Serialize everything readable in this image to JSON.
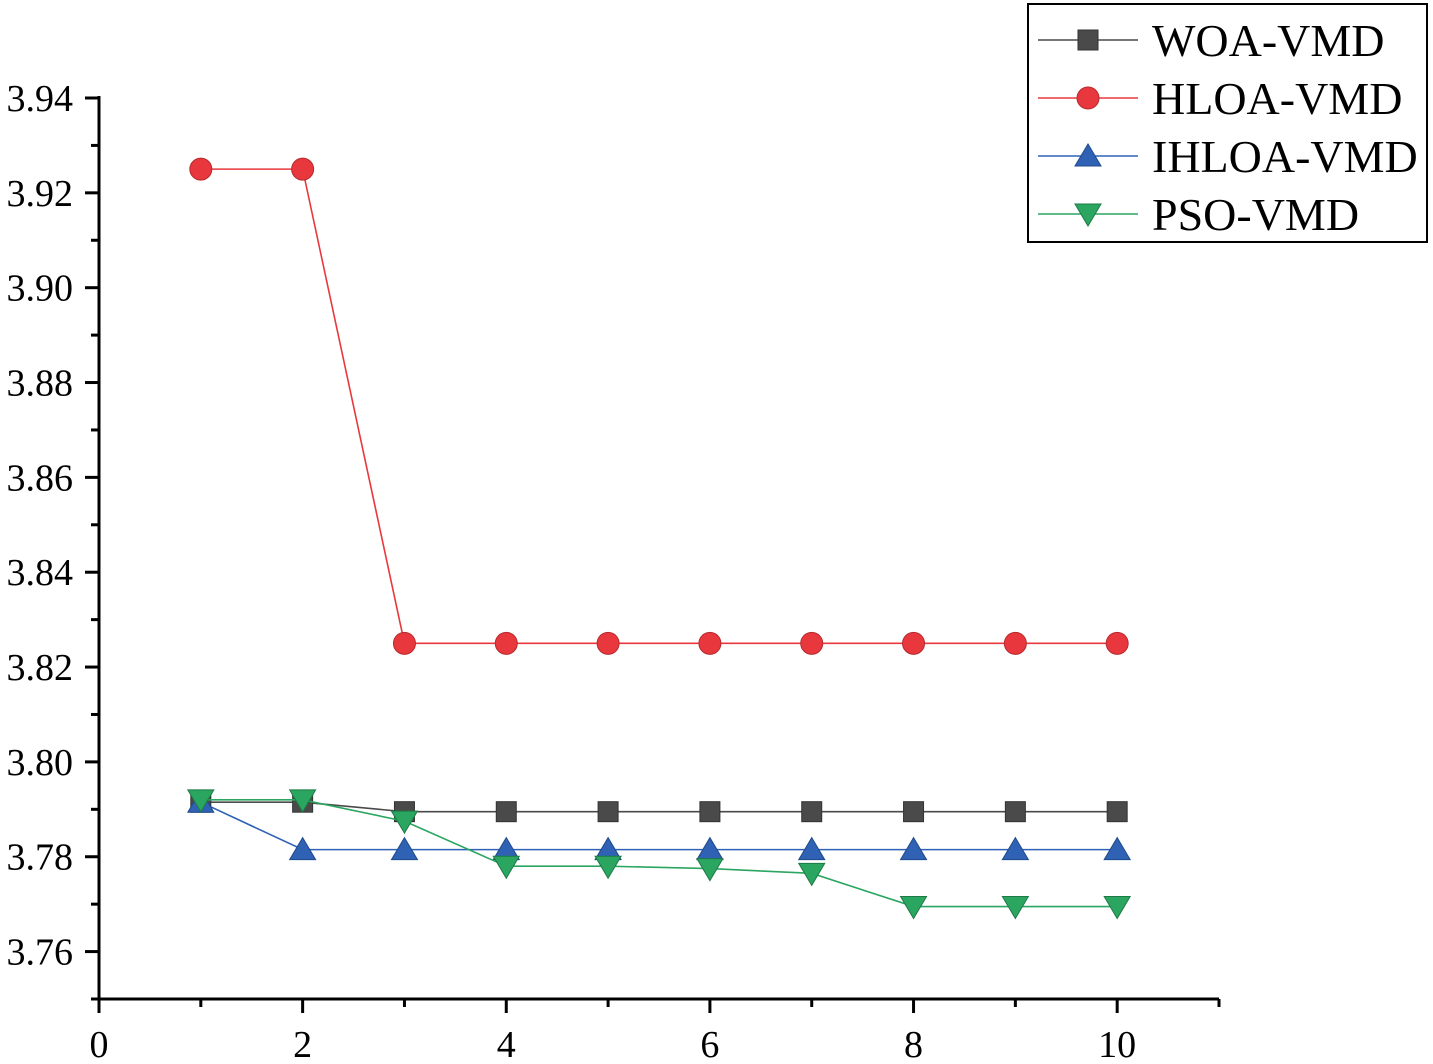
{
  "chart_data": {
    "type": "line",
    "title": "",
    "xlabel": "",
    "ylabel": "",
    "xlim": [
      0,
      11
    ],
    "ylim": [
      3.75,
      3.94
    ],
    "xticks": [
      0,
      2,
      4,
      6,
      8,
      10
    ],
    "yticks": [
      3.76,
      3.78,
      3.8,
      3.82,
      3.84,
      3.86,
      3.88,
      3.9,
      3.92,
      3.94
    ],
    "xtick_labels": [
      "0",
      "2",
      "4",
      "6",
      "8",
      "10"
    ],
    "ytick_labels": [
      "3.76",
      "3.78",
      "3.80",
      "3.82",
      "3.84",
      "3.86",
      "3.88",
      "3.90",
      "3.92",
      "3.94"
    ],
    "legend_position": "top-right",
    "x": [
      1,
      2,
      3,
      4,
      5,
      6,
      7,
      8,
      9,
      10
    ],
    "series": [
      {
        "name": "WOA-VMD",
        "color": "#4a4a4a",
        "marker": "square",
        "values": [
          3.7915,
          3.7915,
          3.7895,
          3.7895,
          3.7895,
          3.7895,
          3.7895,
          3.7895,
          3.7895,
          3.7895
        ]
      },
      {
        "name": "HLOA-VMD",
        "color": "#e8383d",
        "marker": "circle",
        "values": [
          3.925,
          3.925,
          3.825,
          3.825,
          3.825,
          3.825,
          3.825,
          3.825,
          3.825,
          3.825
        ]
      },
      {
        "name": "IHLOA-VMD",
        "color": "#2f62b5",
        "marker": "triangle-up",
        "values": [
          3.7915,
          3.7815,
          3.7815,
          3.7815,
          3.7815,
          3.7815,
          3.7815,
          3.7815,
          3.7815,
          3.7815
        ]
      },
      {
        "name": "PSO-VMD",
        "color": "#2aa660",
        "marker": "triangle-down",
        "values": [
          3.792,
          3.792,
          3.7875,
          3.778,
          3.778,
          3.7775,
          3.7765,
          3.7695,
          3.7695,
          3.7695
        ]
      }
    ]
  }
}
